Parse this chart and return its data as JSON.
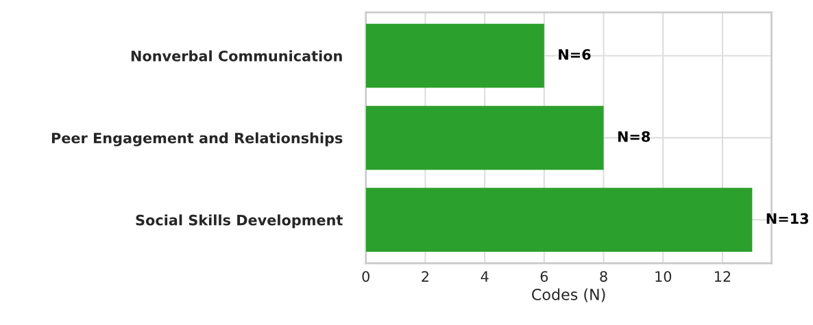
{
  "chart_data": {
    "type": "bar",
    "orientation": "horizontal",
    "xlabel": "Codes (N)",
    "categories": [
      "Nonverbal Communication",
      "Peer Engagement and Relationships",
      "Social Skills Development"
    ],
    "values": [
      6,
      8,
      13
    ],
    "color": "#2ca02c",
    "value_labels": [
      "N=6",
      "N=8",
      "N=13"
    ],
    "xlim": [
      0,
      13.65
    ],
    "xticks": [
      0,
      2,
      4,
      6,
      8,
      10,
      12
    ],
    "grid": true
  }
}
